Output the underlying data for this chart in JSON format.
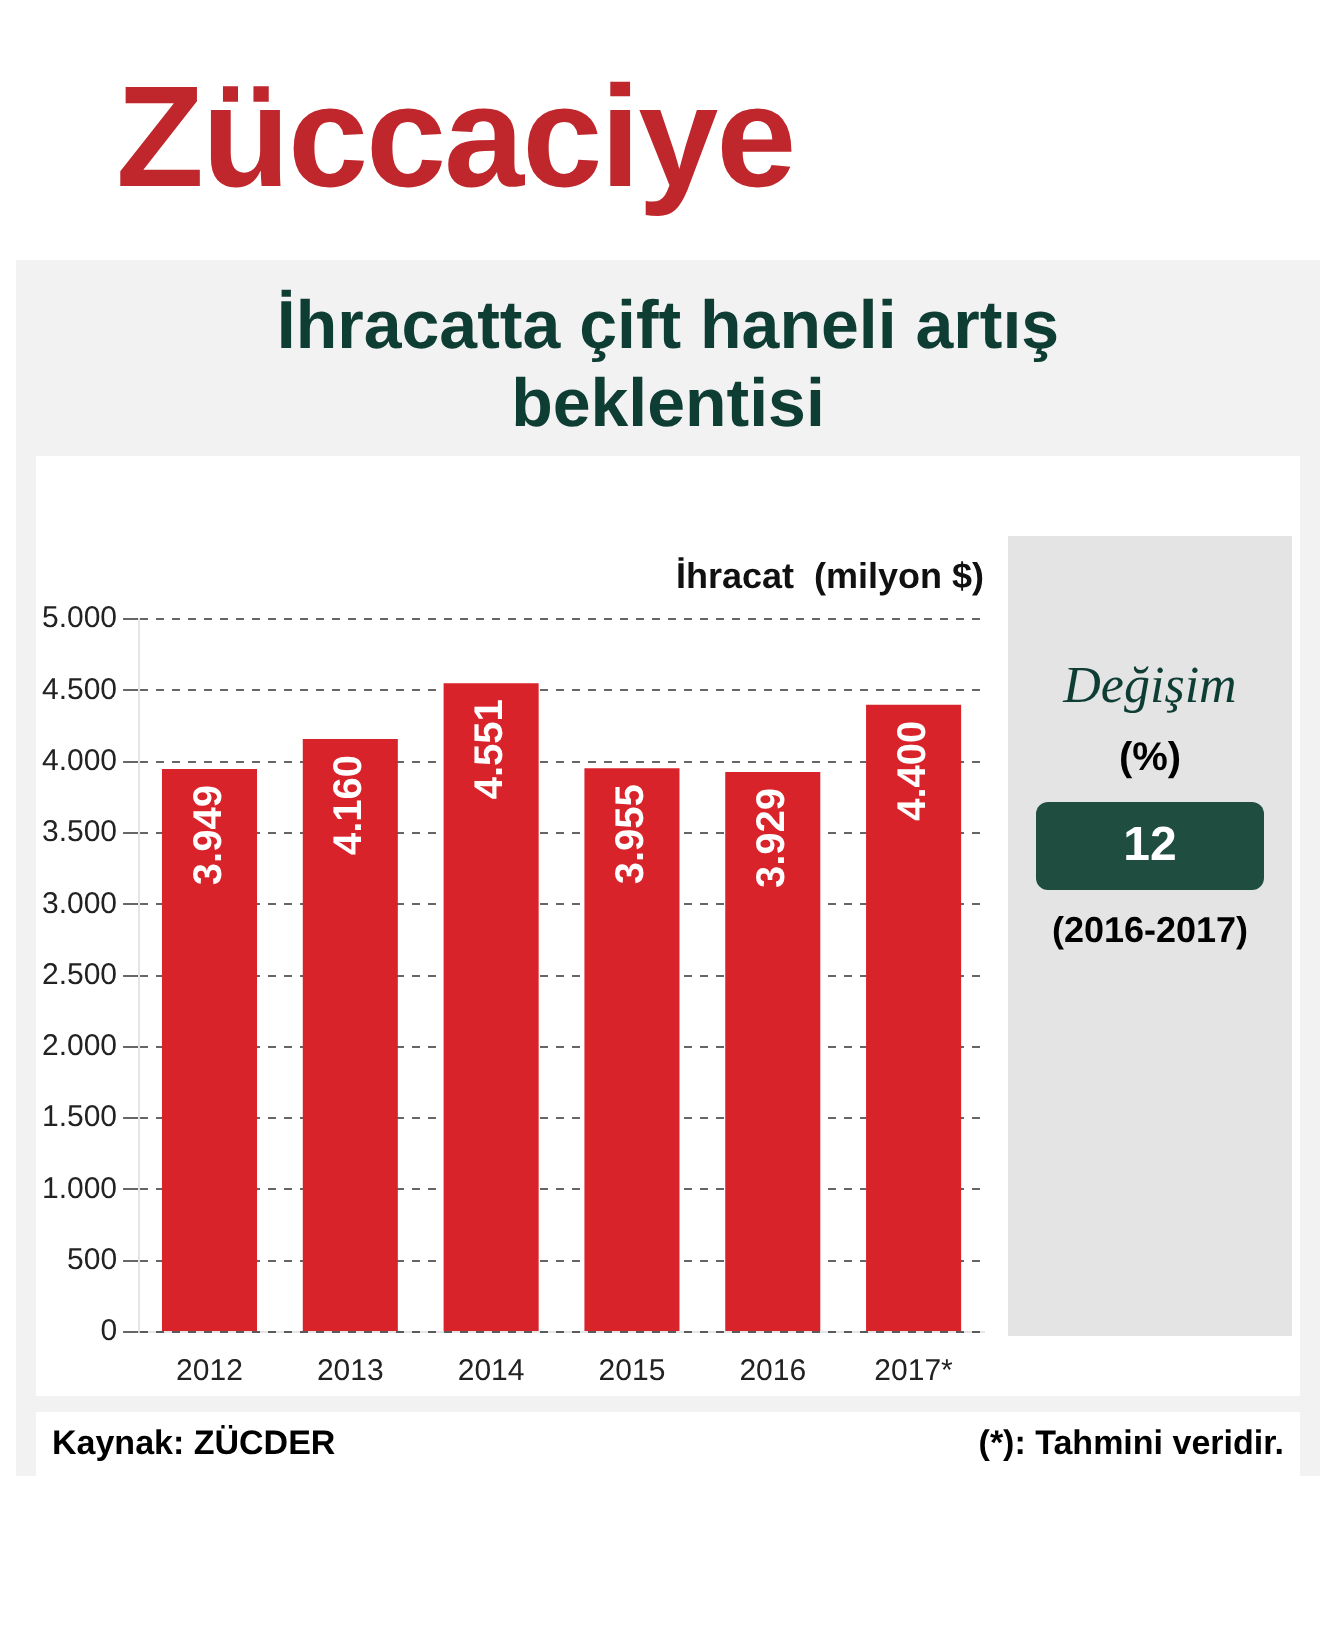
{
  "chart_data": {
    "type": "bar",
    "title": "Züccaciye",
    "subtitle": "İhracatta çift haneli artış beklentisi",
    "ylabel": "İhracat  (milyon $)",
    "categories": [
      "2012",
      "2013",
      "2014",
      "2015",
      "2016",
      "2017*"
    ],
    "values": [
      3949,
      4160,
      4551,
      3955,
      3929,
      4400
    ],
    "value_labels": [
      "3.949",
      "4.160",
      "4.551",
      "3.955",
      "3.929",
      "4.400"
    ],
    "color": "#d9232b",
    "ylim": [
      0,
      5000
    ],
    "yticks": [
      {
        "value": 0,
        "label": "0"
      },
      {
        "value": 500,
        "label": "500"
      },
      {
        "value": 1000,
        "label": "1.000"
      },
      {
        "value": 1500,
        "label": "1.500"
      },
      {
        "value": 2000,
        "label": "2.000"
      },
      {
        "value": 2500,
        "label": "2.500"
      },
      {
        "value": 3000,
        "label": "3.000"
      },
      {
        "value": 3500,
        "label": "3.500"
      },
      {
        "value": 4000,
        "label": "4.000"
      },
      {
        "value": 4500,
        "label": "4.500"
      },
      {
        "value": 5000,
        "label": "5.000"
      }
    ],
    "grid": "y",
    "annotations": [
      "Değişim",
      "(%)",
      "12",
      "(2016-2017)",
      "Kaynak: ZÜCDER",
      "(*): Tahmini veridir."
    ]
  }
}
